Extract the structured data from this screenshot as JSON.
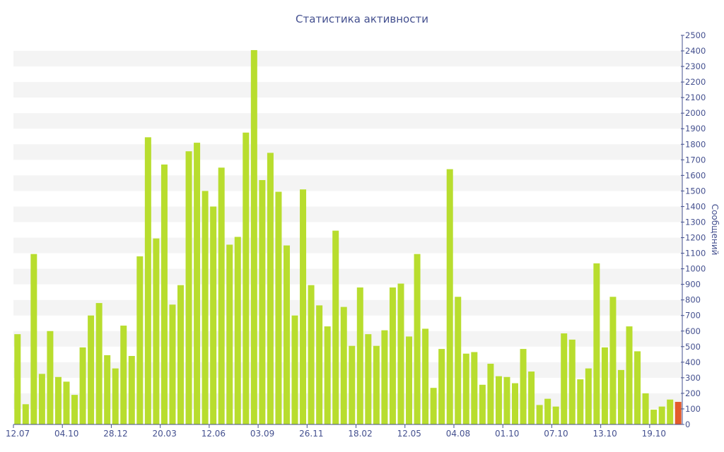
{
  "colors": {
    "bar": "#b8dd2e",
    "highlight_bar": "#e35b2b",
    "band": "#f4f4f4",
    "axis": "#44508f",
    "text": "#44508f"
  },
  "chart_data": {
    "type": "bar",
    "title": "Статистика активности",
    "xlabel": "",
    "ylabel": "Сообщений",
    "y_axis_side": "right",
    "ylim": [
      0,
      2500
    ],
    "y_tick_step": 100,
    "grid": "alternating horizontal bands",
    "x_tick_labels": [
      {
        "index": 0,
        "label": "12.07"
      },
      {
        "index": 6,
        "label": "04.10"
      },
      {
        "index": 12,
        "label": "28.12"
      },
      {
        "index": 18,
        "label": "20.03"
      },
      {
        "index": 24,
        "label": "12.06"
      },
      {
        "index": 30,
        "label": "03.09"
      },
      {
        "index": 36,
        "label": "26.11"
      },
      {
        "index": 42,
        "label": "18.02"
      },
      {
        "index": 48,
        "label": "12.05"
      },
      {
        "index": 54,
        "label": "04.08"
      },
      {
        "index": 60,
        "label": "01.10"
      },
      {
        "index": 66,
        "label": "07.10"
      },
      {
        "index": 72,
        "label": "13.10"
      },
      {
        "index": 78,
        "label": "19.10"
      }
    ],
    "values": [
      580,
      130,
      1095,
      325,
      600,
      305,
      275,
      190,
      495,
      700,
      780,
      445,
      360,
      635,
      440,
      1080,
      1845,
      1195,
      1670,
      770,
      895,
      1755,
      1810,
      1500,
      1400,
      1650,
      1155,
      1205,
      1875,
      2405,
      1570,
      1745,
      1495,
      1150,
      700,
      1510,
      895,
      765,
      630,
      1245,
      755,
      505,
      880,
      580,
      505,
      605,
      880,
      905,
      565,
      1095,
      615,
      235,
      485,
      1640,
      820,
      455,
      465,
      255,
      390,
      310,
      305,
      265,
      485,
      340,
      125,
      165,
      115,
      585,
      545,
      290,
      360,
      1035,
      495,
      820,
      350,
      630,
      470,
      200,
      95,
      115,
      160,
      145
    ],
    "highlight_index": 81
  }
}
